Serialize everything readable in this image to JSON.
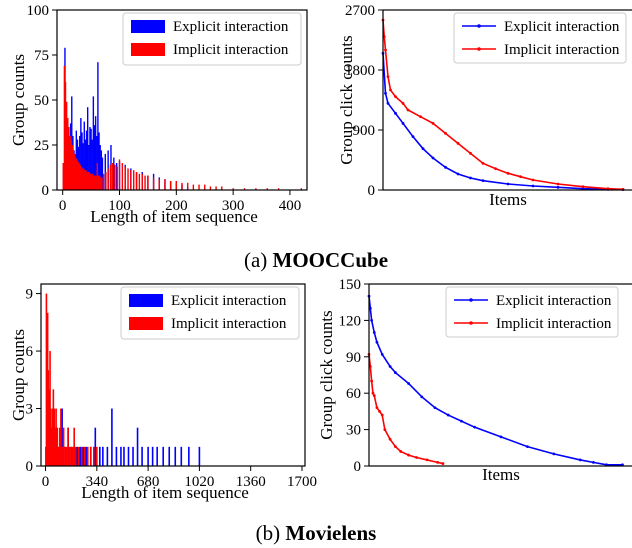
{
  "captions": {
    "a": {
      "prefix": "(a) ",
      "name": "MOOCCube"
    },
    "b": {
      "prefix": "(b) ",
      "name": "Movielens"
    }
  },
  "colors": {
    "explicit": "#0000ff",
    "implicit": "#ff0000"
  },
  "chart_data": [
    {
      "id": "a1",
      "type": "bar",
      "xlabel": "Length of item sequence",
      "ylabel": "Group counts",
      "xlim": [
        -10,
        430
      ],
      "ylim": [
        0,
        100
      ],
      "xticks": [
        0,
        100,
        200,
        300,
        400
      ],
      "yticks": [
        0,
        25,
        50,
        75,
        100
      ],
      "legend": "top-right",
      "series": [
        {
          "name": "Explicit interaction",
          "color": "#0000ff",
          "x": [
            2,
            4,
            6,
            8,
            10,
            12,
            14,
            16,
            18,
            20,
            22,
            24,
            26,
            28,
            30,
            32,
            34,
            36,
            38,
            40,
            42,
            44,
            46,
            48,
            50,
            52,
            54,
            56,
            58,
            60,
            62,
            64,
            66,
            68,
            70,
            75,
            80,
            85,
            90,
            95,
            100,
            110,
            120,
            130,
            140,
            150,
            160,
            170,
            180,
            190,
            200,
            210,
            220
          ],
          "values": [
            15,
            79,
            45,
            30,
            22,
            25,
            37,
            52,
            30,
            22,
            20,
            33,
            28,
            24,
            30,
            40,
            32,
            26,
            38,
            28,
            33,
            46,
            25,
            35,
            34,
            28,
            52,
            36,
            41,
            30,
            71,
            32,
            25,
            22,
            18,
            20,
            22,
            25,
            18,
            15,
            16,
            14,
            12,
            10,
            10,
            8,
            9,
            7,
            6,
            5,
            4,
            3,
            2
          ]
        },
        {
          "name": "Implicit interaction",
          "color": "#ff0000",
          "x": [
            1,
            3,
            5,
            7,
            9,
            11,
            13,
            15,
            17,
            19,
            21,
            23,
            25,
            27,
            29,
            31,
            33,
            35,
            37,
            39,
            41,
            43,
            45,
            47,
            49,
            51,
            53,
            55,
            57,
            59,
            61,
            63,
            65,
            67,
            69,
            72,
            76,
            80,
            84,
            88,
            92,
            96,
            100,
            105,
            110,
            115,
            120,
            125,
            130,
            135,
            140,
            145,
            150,
            160,
            170,
            180,
            190,
            200,
            210,
            220,
            230,
            240,
            250,
            260,
            270,
            280,
            300,
            320,
            340,
            360,
            380,
            400,
            420
          ],
          "values": [
            15,
            69,
            60,
            49,
            40,
            35,
            30,
            28,
            25,
            22,
            20,
            18,
            17,
            16,
            15,
            14,
            13,
            12,
            12,
            11,
            11,
            10,
            10,
            10,
            9,
            9,
            9,
            8,
            8,
            8,
            15,
            8,
            8,
            7,
            7,
            9,
            10,
            12,
            14,
            15,
            14,
            13,
            17,
            15,
            13,
            12,
            11,
            11,
            10,
            9,
            9,
            8,
            8,
            7,
            6,
            6,
            5,
            5,
            4,
            4,
            3,
            3,
            3,
            2,
            2,
            2,
            1,
            1,
            1,
            1,
            1,
            0,
            1
          ]
        }
      ]
    },
    {
      "id": "a2",
      "type": "line",
      "xlabel": "Items",
      "ylabel": "Group click counts",
      "xlim": [
        0,
        1
      ],
      "ylim": [
        0,
        2700
      ],
      "yticks": [
        0,
        900,
        1800,
        2700
      ],
      "legend": "top-right",
      "series": [
        {
          "name": "Explicit interaction",
          "color": "#0000ff",
          "x": [
            0.0,
            0.01,
            0.02,
            0.05,
            0.08,
            0.12,
            0.16,
            0.2,
            0.25,
            0.3,
            0.35,
            0.4,
            0.5,
            0.6,
            0.7,
            0.8,
            0.9,
            0.96
          ],
          "values": [
            2050,
            1450,
            1300,
            1150,
            1000,
            800,
            620,
            480,
            340,
            240,
            180,
            140,
            90,
            60,
            40,
            20,
            10,
            5
          ]
        },
        {
          "name": "Implicit interaction",
          "color": "#ff0000",
          "x": [
            0.0,
            0.005,
            0.01,
            0.02,
            0.03,
            0.05,
            0.08,
            0.1,
            0.15,
            0.2,
            0.25,
            0.3,
            0.35,
            0.4,
            0.45,
            0.5,
            0.55,
            0.6,
            0.7,
            0.8,
            0.9,
            0.96
          ],
          "values": [
            2550,
            2300,
            2100,
            1700,
            1500,
            1400,
            1300,
            1200,
            1100,
            1000,
            850,
            700,
            550,
            400,
            320,
            250,
            200,
            150,
            90,
            50,
            20,
            10
          ]
        }
      ]
    },
    {
      "id": "b1",
      "type": "bar",
      "xlabel": "Length of item sequence",
      "ylabel": "Group counts",
      "xlim": [
        -30,
        1720
      ],
      "ylim": [
        0,
        9.5
      ],
      "xticks": [
        0,
        340,
        680,
        1020,
        1360,
        1700
      ],
      "yticks": [
        0,
        3,
        6,
        9
      ],
      "legend": "top-right",
      "series": [
        {
          "name": "Explicit interaction",
          "color": "#0000ff",
          "x": [
            20,
            35,
            50,
            70,
            90,
            110,
            130,
            150,
            170,
            190,
            210,
            230,
            250,
            270,
            300,
            330,
            360,
            380,
            410,
            440,
            470,
            500,
            520,
            550,
            580,
            610,
            640,
            680,
            710,
            740,
            780,
            820,
            860,
            900,
            950,
            1020
          ],
          "values": [
            3,
            2,
            2,
            1,
            1,
            3,
            1,
            2,
            1,
            1,
            1,
            1,
            1,
            1,
            1,
            2,
            1,
            1,
            1,
            3,
            1,
            1,
            1,
            1,
            1,
            2,
            1,
            1,
            1,
            1,
            1,
            1,
            1,
            1,
            1,
            1
          ]
        },
        {
          "name": "Implicit interaction",
          "color": "#ff0000",
          "x": [
            2,
            6,
            10,
            14,
            18,
            22,
            26,
            30,
            34,
            40,
            46,
            52,
            58,
            64,
            70,
            78,
            86,
            94,
            102,
            110,
            120,
            130,
            140,
            150,
            160,
            170,
            180,
            190,
            200,
            220,
            240,
            260,
            280,
            300,
            320,
            340
          ],
          "values": [
            1,
            9,
            6,
            8,
            5,
            4,
            3,
            6,
            3,
            2,
            3,
            4,
            3,
            2,
            3,
            2,
            1,
            2,
            3,
            1,
            2,
            1,
            1,
            2,
            1,
            1,
            1,
            2,
            1,
            1,
            1,
            1,
            1,
            1,
            1,
            1
          ]
        }
      ]
    },
    {
      "id": "b2",
      "type": "line",
      "xlabel": "Items",
      "ylabel": "Group click counts",
      "xlim": [
        0,
        1
      ],
      "ylim": [
        0,
        150
      ],
      "yticks": [
        0,
        30,
        60,
        90,
        120,
        150
      ],
      "legend": "top-right",
      "series": [
        {
          "name": "Explicit interaction",
          "color": "#0000ff",
          "x": [
            0.0,
            0.005,
            0.01,
            0.02,
            0.03,
            0.05,
            0.08,
            0.1,
            0.15,
            0.2,
            0.25,
            0.3,
            0.35,
            0.4,
            0.5,
            0.6,
            0.7,
            0.8,
            0.85,
            0.9,
            0.96
          ],
          "values": [
            140,
            130,
            120,
            110,
            102,
            92,
            82,
            77,
            68,
            57,
            48,
            42,
            37,
            32,
            24,
            16,
            10,
            5,
            3,
            1,
            1
          ]
        },
        {
          "name": "Implicit interaction",
          "color": "#ff0000",
          "x": [
            0.0,
            0.005,
            0.01,
            0.015,
            0.02,
            0.03,
            0.04,
            0.05,
            0.06,
            0.08,
            0.1,
            0.12,
            0.15,
            0.18,
            0.22,
            0.26,
            0.28
          ],
          "values": [
            92,
            82,
            70,
            60,
            58,
            48,
            45,
            42,
            30,
            22,
            16,
            12,
            9,
            7,
            5,
            3,
            2
          ]
        }
      ]
    }
  ]
}
